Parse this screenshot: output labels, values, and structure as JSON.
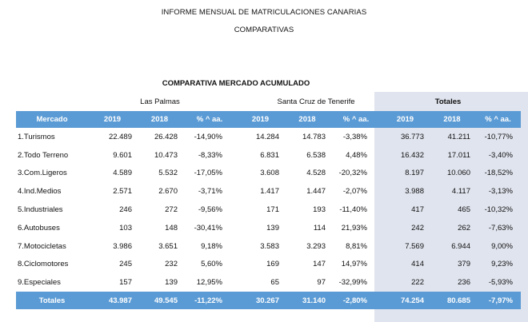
{
  "report": {
    "title": "INFORME MENSUAL DE MATRICULACIONES CANARIAS",
    "subtitle": "COMPARATIVAS",
    "section_title": "COMPARATIVA MERCADO ACUMULADO"
  },
  "groups": {
    "las_palmas": "Las Palmas",
    "tenerife": "Santa Cruz de Tenerife",
    "totales": "Totales"
  },
  "columns": [
    "Mercado",
    "2019",
    "2018",
    "% ^ aa.",
    "2019",
    "2018",
    "% ^ aa.",
    "2019",
    "2018",
    "% ^ aa."
  ],
  "rows": [
    [
      "1.Turismos",
      "22.489",
      "26.428",
      "-14,90%",
      "14.284",
      "14.783",
      "-3,38%",
      "36.773",
      "41.211",
      "-10,77%"
    ],
    [
      "2.Todo Terreno",
      "9.601",
      "10.473",
      "-8,33%",
      "6.831",
      "6.538",
      "4,48%",
      "16.432",
      "17.011",
      "-3,40%"
    ],
    [
      "3.Com.Ligeros",
      "4.589",
      "5.532",
      "-17,05%",
      "3.608",
      "4.528",
      "-20,32%",
      "8.197",
      "10.060",
      "-18,52%"
    ],
    [
      "4.Ind.Medios",
      "2.571",
      "2.670",
      "-3,71%",
      "1.417",
      "1.447",
      "-2,07%",
      "3.988",
      "4.117",
      "-3,13%"
    ],
    [
      "5.Industriales",
      "246",
      "272",
      "-9,56%",
      "171",
      "193",
      "-11,40%",
      "417",
      "465",
      "-10,32%"
    ],
    [
      "6.Autobuses",
      "103",
      "148",
      "-30,41%",
      "139",
      "114",
      "21,93%",
      "242",
      "262",
      "-7,63%"
    ],
    [
      "7.Motocicletas",
      "3.986",
      "3.651",
      "9,18%",
      "3.583",
      "3.293",
      "8,81%",
      "7.569",
      "6.944",
      "9,00%"
    ],
    [
      "8.Ciclomotores",
      "245",
      "232",
      "5,60%",
      "169",
      "147",
      "14,97%",
      "414",
      "379",
      "9,23%"
    ],
    [
      "9.Especiales",
      "157",
      "139",
      "12,95%",
      "65",
      "97",
      "-32,99%",
      "222",
      "236",
      "-5,93%"
    ]
  ],
  "totals": [
    "Totales",
    "43.987",
    "49.545",
    "-11,22%",
    "30.267",
    "31.140",
    "-2,80%",
    "74.254",
    "80.685",
    "-7,97%"
  ]
}
